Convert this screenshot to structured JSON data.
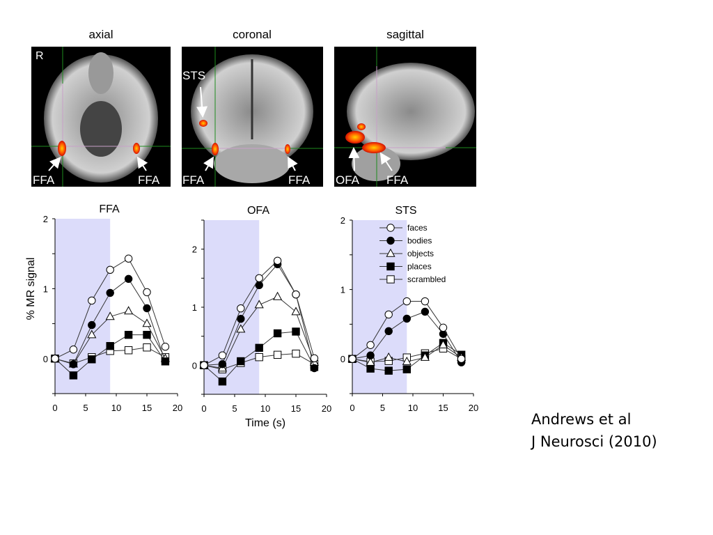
{
  "brain_panels": [
    {
      "title": "axial",
      "corner_label": "R",
      "labels": [
        "FFA",
        "FFA"
      ]
    },
    {
      "title": "coronal",
      "labels": [
        "STS",
        "FFA",
        "FFA"
      ]
    },
    {
      "title": "sagittal",
      "labels": [
        "OFA",
        "FFA"
      ]
    }
  ],
  "colors": {
    "stim_shade": "#dcdcfa",
    "activation": "#ff5a00",
    "crosshair": "#1e8c1e"
  },
  "caption": {
    "line1": "Andrews et al",
    "line2": "J Neurosci (2010)"
  },
  "chart_data": [
    {
      "type": "line",
      "title": "FFA",
      "xlabel": "",
      "ylabel": "% MR signal",
      "x": [
        0,
        3,
        6,
        9,
        12,
        15,
        18
      ],
      "xlim": [
        0,
        20
      ],
      "ylim": [
        -0.5,
        2
      ],
      "xticks": [
        "0",
        "5",
        "10",
        "15",
        "20"
      ],
      "yticks": [
        "0",
        "1",
        "2"
      ],
      "stimulus_period": [
        0,
        9
      ],
      "series": [
        {
          "name": "faces",
          "marker": "circle-open",
          "values": [
            0,
            0.13,
            0.83,
            1.27,
            1.43,
            0.95,
            0.17
          ]
        },
        {
          "name": "bodies",
          "marker": "circle-filled",
          "values": [
            0,
            -0.08,
            0.48,
            0.94,
            1.14,
            0.72,
            -0.04
          ]
        },
        {
          "name": "objects",
          "marker": "triangle-open",
          "values": [
            0,
            -0.08,
            0.34,
            0.6,
            0.68,
            0.5,
            0
          ]
        },
        {
          "name": "places",
          "marker": "square-filled",
          "values": [
            0,
            -0.24,
            -0.01,
            0.18,
            0.34,
            0.34,
            -0.04
          ]
        },
        {
          "name": "scrambled",
          "marker": "square-open",
          "values": [
            0,
            -0.07,
            0.02,
            0.11,
            0.12,
            0.16,
            0.02
          ]
        }
      ]
    },
    {
      "type": "line",
      "title": "OFA",
      "xlabel": "Time (s)",
      "ylabel": "",
      "x": [
        0,
        3,
        6,
        9,
        12,
        15,
        18
      ],
      "xlim": [
        0,
        20
      ],
      "ylim": [
        -0.5,
        2.5
      ],
      "xticks": [
        "0",
        "5",
        "10",
        "15",
        "20"
      ],
      "yticks": [
        "0",
        "1",
        "2"
      ],
      "stimulus_period": [
        0,
        9
      ],
      "series": [
        {
          "name": "faces",
          "marker": "circle-open",
          "values": [
            0,
            0.17,
            0.98,
            1.5,
            1.8,
            1.22,
            0.12
          ]
        },
        {
          "name": "bodies",
          "marker": "circle-filled",
          "values": [
            0,
            0.02,
            0.8,
            1.38,
            1.74,
            1.22,
            -0.05
          ]
        },
        {
          "name": "objects",
          "marker": "triangle-open",
          "values": [
            0,
            -0.05,
            0.62,
            1.04,
            1.18,
            0.92,
            0.05
          ]
        },
        {
          "name": "places",
          "marker": "square-filled",
          "values": [
            0,
            -0.28,
            0.07,
            0.3,
            0.55,
            0.58,
            -0.03
          ]
        },
        {
          "name": "scrambled",
          "marker": "square-open",
          "values": [
            0,
            -0.07,
            0.04,
            0.14,
            0.18,
            0.2,
            0.02
          ]
        }
      ]
    },
    {
      "type": "line",
      "title": "STS",
      "xlabel": "",
      "ylabel": "",
      "x": [
        0,
        3,
        6,
        9,
        12,
        15,
        18
      ],
      "xlim": [
        0,
        20
      ],
      "ylim": [
        -0.5,
        2
      ],
      "xticks": [
        "0",
        "5",
        "10",
        "15",
        "20"
      ],
      "yticks": [
        "0",
        "1",
        "2"
      ],
      "stimulus_period": [
        0,
        9
      ],
      "legend": "top-right",
      "series": [
        {
          "name": "faces",
          "marker": "circle-open",
          "values": [
            0,
            0.2,
            0.64,
            0.83,
            0.83,
            0.45,
            0
          ]
        },
        {
          "name": "bodies",
          "marker": "circle-filled",
          "values": [
            0,
            0.05,
            0.4,
            0.58,
            0.68,
            0.36,
            -0.05
          ]
        },
        {
          "name": "objects",
          "marker": "triangle-open",
          "values": [
            0,
            -0.05,
            0.02,
            -0.04,
            0.02,
            0.2,
            0.02
          ]
        },
        {
          "name": "places",
          "marker": "square-filled",
          "values": [
            0,
            -0.14,
            -0.17,
            -0.15,
            0.05,
            0.23,
            0.06
          ]
        },
        {
          "name": "scrambled",
          "marker": "square-open",
          "values": [
            0,
            -0.04,
            -0.03,
            0.02,
            0.08,
            0.15,
            0
          ]
        }
      ]
    }
  ]
}
